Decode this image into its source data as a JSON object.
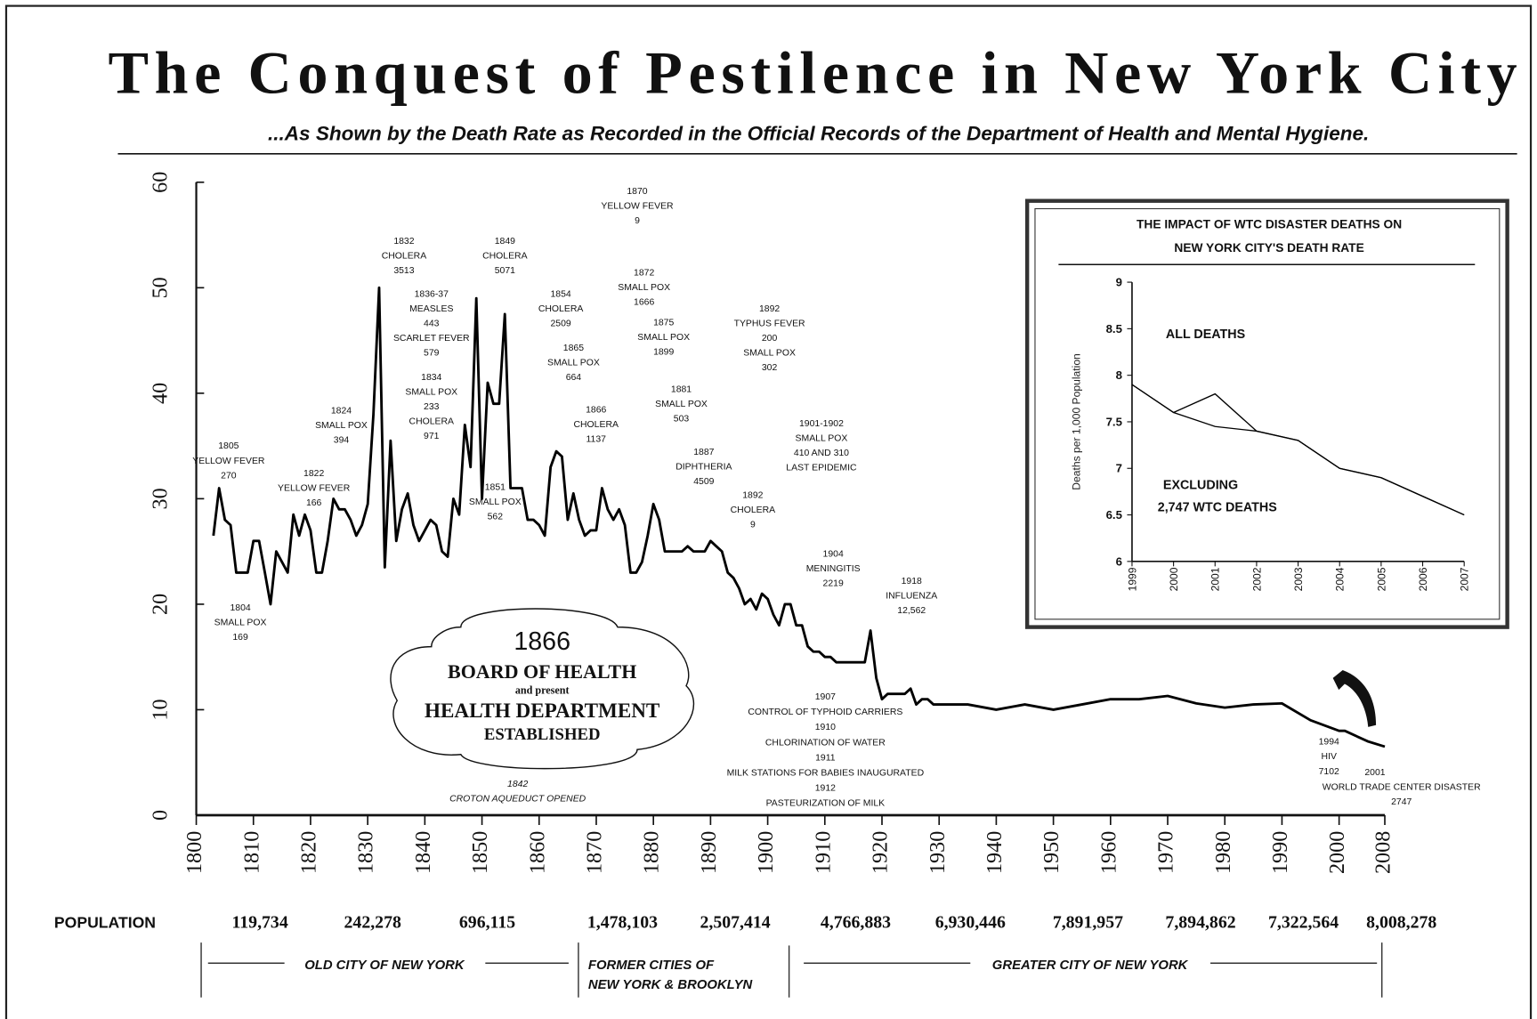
{
  "title": "The Conquest of Pestilence in New York City",
  "subtitle": "...As Shown by the Death Rate as Recorded in the Official Records of the Department of Health and Mental Hygiene.",
  "chart_data": [
    {
      "type": "line",
      "ylabel": "Deaths per 1,000 Population",
      "x": [
        1803,
        1804,
        1805,
        1806,
        1807,
        1808,
        1809,
        1810,
        1811,
        1812,
        1813,
        1814,
        1815,
        1816,
        1817,
        1818,
        1819,
        1820,
        1821,
        1822,
        1823,
        1824,
        1825,
        1826,
        1827,
        1828,
        1829,
        1830,
        1831,
        1832,
        1833,
        1834,
        1835,
        1836,
        1837,
        1838,
        1839,
        1840,
        1841,
        1842,
        1843,
        1844,
        1845,
        1846,
        1847,
        1848,
        1849,
        1850,
        1851,
        1852,
        1853,
        1854,
        1855,
        1856,
        1857,
        1858,
        1859,
        1860,
        1861,
        1862,
        1863,
        1864,
        1865,
        1866,
        1867,
        1868,
        1869,
        1870,
        1871,
        1872,
        1873,
        1874,
        1875,
        1876,
        1877,
        1878,
        1879,
        1880,
        1881,
        1882,
        1883,
        1884,
        1885,
        1886,
        1887,
        1888,
        1889,
        1890,
        1891,
        1892,
        1893,
        1894,
        1895,
        1896,
        1897,
        1898,
        1899,
        1900,
        1901,
        1902,
        1903,
        1904,
        1905,
        1906,
        1907,
        1908,
        1909,
        1910,
        1911,
        1912,
        1913,
        1914,
        1915,
        1916,
        1917,
        1918,
        1919,
        1920,
        1921,
        1922,
        1923,
        1924,
        1925,
        1926,
        1927,
        1928,
        1929,
        1930,
        1935,
        1940,
        1945,
        1950,
        1955,
        1960,
        1965,
        1970,
        1975,
        1980,
        1985,
        1990,
        1995,
        2000,
        2001,
        2005,
        2008
      ],
      "values": [
        26.5,
        31,
        28,
        27.5,
        23,
        23,
        23,
        26,
        26,
        23,
        20,
        25,
        24,
        23,
        28.5,
        26.5,
        28.5,
        27,
        23,
        23,
        26,
        30,
        29,
        29,
        28,
        26.5,
        27.5,
        29.5,
        38,
        50,
        23.5,
        35.5,
        26,
        29,
        30.5,
        27.5,
        26,
        27,
        28,
        27.5,
        25,
        24.5,
        30,
        28.5,
        37,
        33,
        49,
        30,
        41,
        39,
        39,
        47.5,
        31,
        31,
        31,
        28,
        28,
        27.5,
        26.5,
        33,
        34.5,
        34,
        28,
        30.5,
        28,
        26.5,
        27,
        27,
        31,
        29,
        28,
        29,
        27.5,
        23,
        23,
        24,
        26.5,
        29.5,
        28,
        25,
        25,
        25,
        25,
        25.5,
        25,
        25,
        25,
        26,
        25.5,
        25,
        23,
        22.5,
        21.5,
        20,
        20.5,
        19.5,
        21,
        20.5,
        19,
        18,
        20,
        20,
        18,
        18,
        16,
        15.5,
        15.5,
        15,
        15,
        14.5,
        14.5,
        14.5,
        14.5,
        14.5,
        14.5,
        17.5,
        13,
        11,
        11.5,
        11.5,
        11.5,
        11.5,
        12,
        10.5,
        11,
        11,
        10.5,
        10.5,
        10.5,
        10,
        10.5,
        10,
        10.5,
        11,
        11,
        11.3,
        10.6,
        10.2,
        10.5,
        10.6,
        9,
        8,
        8,
        7,
        6.5
      ],
      "color": "#000000",
      "xlim": [
        1800,
        2008
      ],
      "xticks": [
        1800,
        1810,
        1820,
        1830,
        1840,
        1850,
        1860,
        1870,
        1880,
        1890,
        1900,
        1910,
        1920,
        1930,
        1940,
        1950,
        1960,
        1970,
        1980,
        1990,
        2000,
        2008
      ],
      "ylim": [
        0,
        60
      ],
      "yticks": [
        0,
        10,
        20,
        30,
        40,
        50,
        60
      ],
      "annotations": [
        [
          "1805",
          "YELLOW FEVER",
          "270"
        ],
        [
          "1804",
          "SMALL POX",
          "169"
        ],
        [
          "1822",
          "YELLOW FEVER",
          "166"
        ],
        [
          "1824",
          "SMALL POX",
          "394"
        ],
        [
          "1832",
          "CHOLERA",
          "3513"
        ],
        [
          "1836-37",
          "MEASLES",
          "443",
          "SCARLET FEVER",
          "579"
        ],
        [
          "1834",
          "SMALL POX",
          "233",
          "CHOLERA",
          "971"
        ],
        [
          "1849",
          "CHOLERA",
          "5071"
        ],
        [
          "1851",
          "SMALL POX",
          "562"
        ],
        [
          "1854",
          "CHOLERA",
          "2509"
        ],
        [
          "1865",
          "SMALL POX",
          "664"
        ],
        [
          "1866",
          "CHOLERA",
          "1137"
        ],
        [
          "1870",
          "YELLOW FEVER",
          "9"
        ],
        [
          "1872",
          "SMALL POX",
          "1666"
        ],
        [
          "1875",
          "SMALL POX",
          "1899"
        ],
        [
          "1881",
          "SMALL POX",
          "503"
        ],
        [
          "1887",
          "DIPHTHERIA",
          "4509"
        ],
        [
          "1892",
          "TYPHUS FEVER",
          "200",
          "SMALL POX",
          "302"
        ],
        [
          "1892",
          "CHOLERA",
          "9"
        ],
        [
          "1901-1902",
          "SMALL POX",
          "410 AND 310",
          "LAST EPIDEMIC"
        ],
        [
          "1904",
          "MENINGITIS",
          "2219"
        ],
        [
          "1918",
          "INFLUENZA",
          "12,562"
        ],
        [
          "1907",
          "CONTROL OF TYPHOID CARRIERS",
          "1910",
          "CHLORINATION OF WATER",
          "1911",
          "MILK STATIONS FOR BABIES INAUGURATED",
          "1912",
          "PASTEURIZATION OF MILK"
        ],
        [
          "1842",
          "CROTON AQUEDUCT OPENED"
        ],
        [
          "1994",
          "HIV",
          "7102"
        ],
        [
          "2001",
          "WORLD TRADE CENTER DISASTER",
          "2747"
        ]
      ],
      "callout": [
        "1866",
        "BOARD OF HEALTH",
        "and present",
        "HEALTH DEPARTMENT",
        "ESTABLISHED"
      ]
    },
    {
      "type": "line",
      "title": [
        "THE IMPACT OF WTC DISASTER DEATHS ON",
        "NEW YORK CITY'S DEATH RATE"
      ],
      "ylabel": "Deaths per 1,000 Population",
      "x": [
        1999,
        2000,
        2001,
        2002,
        2003,
        2004,
        2005,
        2006,
        2007
      ],
      "series": [
        {
          "color": "#000000",
          "values": [
            7.9,
            7.6,
            7.8,
            7.4,
            7.3,
            7.0,
            6.9,
            6.7,
            6.5
          ]
        },
        {
          "color": "#000000",
          "values": [
            7.9,
            7.6,
            7.45,
            7.4,
            7.3,
            7.0,
            6.9,
            6.7,
            6.5
          ]
        }
      ],
      "labels": [
        "ALL DEATHS",
        "EXCLUDING",
        "2,747 WTC DEATHS"
      ],
      "xlim": [
        1999,
        2007
      ],
      "xticks": [
        1999,
        2000,
        2001,
        2002,
        2003,
        2004,
        2005,
        2006,
        2007
      ],
      "ylim": [
        6,
        9
      ],
      "yticks": [
        6,
        6.5,
        7,
        7.5,
        8,
        8.5,
        9
      ]
    }
  ],
  "population": {
    "label": "POPULATION",
    "values": [
      "119,734",
      "242,278",
      "696,115",
      "1,478,103",
      "2,507,414",
      "4,766,883",
      "6,930,446",
      "7,891,957",
      "7,894,862",
      "7,322,564",
      "8,008,278"
    ]
  },
  "eras": [
    [
      "OLD CITY OF NEW YORK"
    ],
    [
      "FORMER CITIES OF",
      "NEW YORK & BROOKLYN"
    ],
    [
      "GREATER CITY OF NEW YORK"
    ]
  ]
}
